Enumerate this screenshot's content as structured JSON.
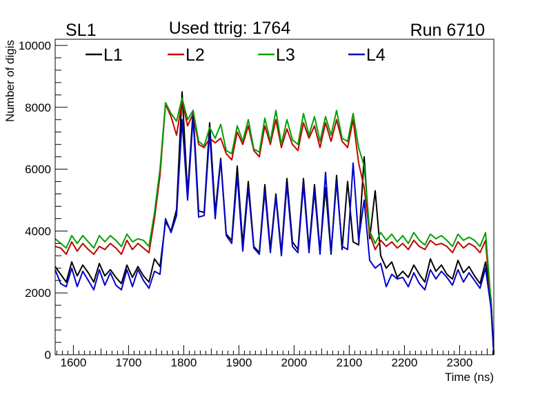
{
  "chart_data": {
    "type": "line",
    "title": "Used ttrig: 1764",
    "left_label": "SL1",
    "right_label": "Run 6710",
    "xlabel": "Time (ns)",
    "ylabel": "Number of digis",
    "xlim": [
      1567,
      2362
    ],
    "ylim": [
      0,
      10200
    ],
    "x_ticks": [
      1600,
      1700,
      1800,
      1900,
      2000,
      2100,
      2200,
      2300
    ],
    "y_ticks": [
      0,
      2000,
      4000,
      6000,
      8000,
      10000
    ],
    "legend_placement": "top-left",
    "x": [
      1567,
      1577,
      1587,
      1597,
      1607,
      1617,
      1627,
      1637,
      1647,
      1657,
      1667,
      1677,
      1687,
      1697,
      1707,
      1717,
      1727,
      1737,
      1747,
      1757,
      1767,
      1777,
      1787,
      1797,
      1807,
      1817,
      1827,
      1837,
      1847,
      1857,
      1867,
      1877,
      1887,
      1897,
      1907,
      1917,
      1927,
      1937,
      1947,
      1957,
      1967,
      1977,
      1987,
      1997,
      2007,
      2017,
      2027,
      2037,
      2047,
      2057,
      2067,
      2077,
      2087,
      2097,
      2107,
      2117,
      2127,
      2137,
      2147,
      2157,
      2167,
      2177,
      2187,
      2197,
      2207,
      2217,
      2227,
      2237,
      2247,
      2257,
      2267,
      2277,
      2287,
      2297,
      2307,
      2317,
      2327,
      2337,
      2347,
      2357,
      2362
    ],
    "series": [
      {
        "name": "L1",
        "color": "#000000",
        "values": [
          2850,
          2600,
          2350,
          3000,
          2550,
          2900,
          2650,
          2350,
          2950,
          2550,
          2750,
          2500,
          2300,
          2900,
          2500,
          2850,
          2550,
          2350,
          3100,
          2850,
          4300,
          4000,
          4700,
          8500,
          5200,
          7900,
          4650,
          4600,
          7500,
          4600,
          6350,
          3900,
          3700,
          6100,
          3550,
          5600,
          3500,
          3300,
          5500,
          3400,
          5200,
          3300,
          5700,
          3650,
          3400,
          5700,
          3400,
          5500,
          3350,
          5400,
          3250,
          5800,
          3400,
          5600,
          3650,
          3550,
          6400,
          3750,
          5300,
          3200,
          2800,
          3000,
          2500,
          2700,
          2500,
          2900,
          2600,
          2350,
          3100,
          2700,
          2900,
          2600,
          2450,
          3050,
          2650,
          2850,
          2550,
          2300,
          3000,
          1800,
          0
        ]
      },
      {
        "name": "L2",
        "color": "#c00000",
        "values": [
          3500,
          3450,
          3250,
          3650,
          3350,
          3600,
          3400,
          3250,
          3500,
          3400,
          3600,
          3450,
          3250,
          3700,
          3400,
          3600,
          3450,
          3300,
          4400,
          5800,
          8100,
          7700,
          7100,
          8200,
          7400,
          7800,
          6800,
          6700,
          7000,
          6850,
          7000,
          6500,
          6300,
          7200,
          6800,
          7400,
          6600,
          6400,
          7400,
          6800,
          7600,
          6700,
          7300,
          6800,
          6600,
          7500,
          7000,
          7400,
          6700,
          7500,
          6900,
          7600,
          6900,
          6700,
          7600,
          6200,
          5400,
          3900,
          3400,
          3700,
          3500,
          3650,
          3450,
          3600,
          3400,
          3700,
          3500,
          3400,
          3700,
          3550,
          3600,
          3500,
          3300,
          3650,
          3450,
          3600,
          3500,
          3300,
          3700,
          1500,
          0
        ]
      },
      {
        "name": "L3",
        "color": "#00a000",
        "values": [
          3750,
          3600,
          3450,
          3850,
          3600,
          3850,
          3650,
          3450,
          3850,
          3650,
          3850,
          3700,
          3500,
          3900,
          3650,
          3750,
          3700,
          3500,
          4600,
          6000,
          8150,
          7800,
          7550,
          8300,
          7600,
          7900,
          6900,
          6750,
          7350,
          7000,
          7450,
          6600,
          6500,
          7400,
          6900,
          7600,
          6650,
          6550,
          7650,
          6900,
          7900,
          6800,
          7600,
          6950,
          6800,
          7800,
          7100,
          7700,
          6900,
          7700,
          7100,
          7900,
          7000,
          6900,
          7800,
          6700,
          6100,
          4000,
          3600,
          3950,
          3700,
          3900,
          3650,
          3850,
          3600,
          3950,
          3700,
          3550,
          3900,
          3750,
          3850,
          3700,
          3500,
          3900,
          3700,
          3800,
          3700,
          3500,
          3950,
          1700,
          0
        ]
      },
      {
        "name": "L4",
        "color": "#0000c8",
        "values": [
          2750,
          2300,
          2200,
          2800,
          2200,
          2700,
          2400,
          2100,
          2750,
          2250,
          2650,
          2250,
          2100,
          2750,
          2200,
          2750,
          2400,
          2150,
          2700,
          2600,
          4400,
          3950,
          4500,
          7600,
          5000,
          7700,
          4450,
          4500,
          7200,
          4400,
          6300,
          3850,
          3600,
          5800,
          3350,
          5400,
          3450,
          3250,
          5300,
          3300,
          5100,
          3200,
          5500,
          3500,
          3300,
          5500,
          3300,
          5300,
          3250,
          5900,
          3300,
          5600,
          3500,
          3400,
          6200,
          3700,
          5000,
          3050,
          2800,
          2950,
          2200,
          2600,
          2450,
          2500,
          2200,
          2650,
          2300,
          2100,
          2750,
          2450,
          2700,
          2500,
          2250,
          2750,
          2350,
          2650,
          2400,
          2150,
          2800,
          1500,
          0
        ]
      }
    ]
  }
}
